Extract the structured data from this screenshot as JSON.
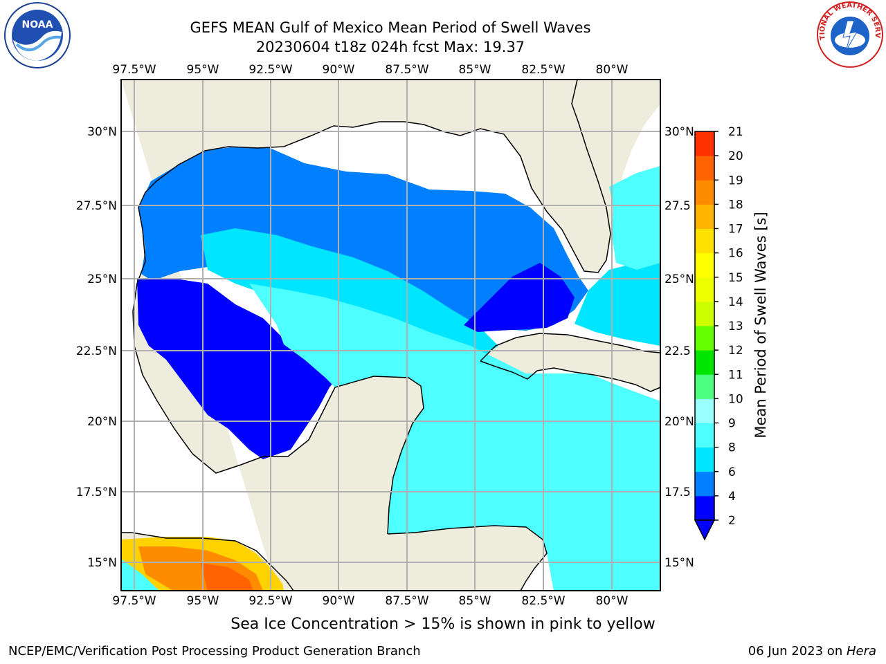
{
  "header": {
    "title_line1": "GEFS MEAN Gulf of Mexico Mean Period of Swell Waves",
    "title_line2": "20230604 t18z 024h fcst   Max: 19.37"
  },
  "logos": {
    "left": {
      "icon": "noaa-logo-icon",
      "text": "NOAA"
    },
    "right": {
      "icon": "nws-logo-icon",
      "text": "NATIONAL WEATHER SERVICE"
    }
  },
  "map": {
    "lon_labels": [
      "97.5°W",
      "95°W",
      "92.5°W",
      "90°W",
      "87.5°W",
      "85°W",
      "82.5°W",
      "80°W"
    ],
    "lat_labels_left": [
      "30°N",
      "27.5°N",
      "25°N",
      "22.5°N",
      "20°N",
      "17.5°N",
      "15°N"
    ],
    "lat_labels_right": [
      "30°N",
      "27.5",
      "25°N",
      "22.5",
      "20°N",
      "17.5",
      "15°N"
    ],
    "land_color": "#eeecdc",
    "grid_color": "#b0b0b0"
  },
  "colorbar": {
    "label": "Mean Period of Swell Waves [s]",
    "ticks": [
      "2",
      "4",
      "6",
      "8",
      "9",
      "10",
      "11",
      "12",
      "13",
      "14",
      "15",
      "16",
      "17",
      "18",
      "19",
      "20",
      "21"
    ],
    "colors": [
      "#0000ff",
      "#0080ff",
      "#00e5ff",
      "#4dffff",
      "#99ffff",
      "#4dff80",
      "#00e600",
      "#66ff00",
      "#ccff00",
      "#eeff00",
      "#ffff00",
      "#ffe100",
      "#ffb400",
      "#ff8c00",
      "#ff6400",
      "#ff3200",
      "#ff0000"
    ],
    "extend_color": "#0000ff"
  },
  "caption": "Sea Ice Concentration > 15% is shown in pink to yellow",
  "footer": {
    "left": "NCEP/EMC/Verification Post Processing Product Generation Branch",
    "date": "06 Jun 2023 on ",
    "machine": "Hera"
  }
}
